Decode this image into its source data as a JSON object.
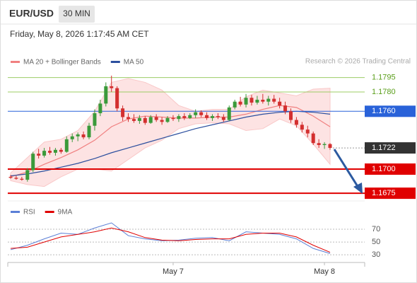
{
  "header": {
    "symbol": "EUR/USD",
    "timeframe": "30 MIN",
    "timestamp": "Friday, May 8, 2026 1:17:45 AM CET"
  },
  "chart_data": {
    "type": "candlestick",
    "legend": [
      {
        "name": "MA 20 + Bollinger Bands",
        "color": "#f08080"
      },
      {
        "name": "MA 50",
        "color": "#2c4f9e"
      }
    ],
    "credit": "Research © 2026 Trading Central",
    "ylim": [
      1.1667,
      1.1805
    ],
    "xlim": [
      -1,
      60
    ],
    "up_color": "#3a9a3a",
    "down_color": "#d32f2f",
    "open": [
      1.1692,
      1.1691,
      1.169,
      1.1689,
      1.1699,
      1.1716,
      1.1714,
      1.1719,
      1.1717,
      1.172,
      1.1718,
      1.1731,
      1.1734,
      1.1736,
      1.1733,
      1.1745,
      1.1758,
      1.1768,
      1.1786,
      1.1784,
      1.1763,
      1.1754,
      1.1752,
      1.175,
      1.1753,
      1.1748,
      1.1754,
      1.1751,
      1.1749,
      1.1753,
      1.1752,
      1.1755,
      1.1753,
      1.1756,
      1.1759,
      1.1756,
      1.1753,
      1.1755,
      1.1754,
      1.1751,
      1.1764,
      1.177,
      1.1767,
      1.1774,
      1.1769,
      1.1772,
      1.177,
      1.1773,
      1.177,
      1.1766,
      1.176,
      1.1751,
      1.1746,
      1.1741,
      1.1737,
      1.1727,
      1.1725,
      1.1726
    ],
    "high": [
      1.1694,
      1.1693,
      1.1692,
      1.1701,
      1.1718,
      1.1721,
      1.1722,
      1.1723,
      1.1722,
      1.1722,
      1.1734,
      1.1737,
      1.1738,
      1.1739,
      1.1748,
      1.1762,
      1.1772,
      1.179,
      1.1797,
      1.1786,
      1.1766,
      1.1758,
      1.1757,
      1.1756,
      1.1755,
      1.1756,
      1.1757,
      1.1754,
      1.1755,
      1.1756,
      1.1757,
      1.1758,
      1.1758,
      1.1762,
      1.1761,
      1.1759,
      1.1757,
      1.1758,
      1.1757,
      1.1766,
      1.1772,
      1.1775,
      1.1778,
      1.1777,
      1.1776,
      1.1778,
      1.1776,
      1.1777,
      1.1774,
      1.177,
      1.1763,
      1.1754,
      1.1749,
      1.1745,
      1.1739,
      1.1731,
      1.1728,
      1.1727
    ],
    "low": [
      1.169,
      1.1689,
      1.1688,
      1.1687,
      1.1697,
      1.1711,
      1.1712,
      1.1715,
      1.1714,
      1.1716,
      1.1717,
      1.1728,
      1.1729,
      1.1731,
      1.1731,
      1.174,
      1.1755,
      1.1765,
      1.178,
      1.176,
      1.175,
      1.1749,
      1.1748,
      1.1747,
      1.1746,
      1.1747,
      1.1749,
      1.1746,
      1.1748,
      1.175,
      1.1749,
      1.1751,
      1.1752,
      1.1753,
      1.1754,
      1.1751,
      1.175,
      1.1752,
      1.1749,
      1.175,
      1.1762,
      1.1765,
      1.1764,
      1.1766,
      1.1767,
      1.1768,
      1.1766,
      1.1768,
      1.1763,
      1.1757,
      1.1748,
      1.1743,
      1.1738,
      1.1733,
      1.1725,
      1.1722,
      1.1721,
      1.172
    ],
    "close": [
      1.1691,
      1.169,
      1.1689,
      1.1699,
      1.1716,
      1.1714,
      1.1719,
      1.1717,
      1.172,
      1.1718,
      1.1731,
      1.1734,
      1.1736,
      1.1733,
      1.1745,
      1.1758,
      1.1768,
      1.1786,
      1.1784,
      1.1763,
      1.1754,
      1.1752,
      1.175,
      1.1753,
      1.1748,
      1.1754,
      1.1751,
      1.1749,
      1.1753,
      1.1752,
      1.1755,
      1.1753,
      1.1756,
      1.1759,
      1.1756,
      1.1753,
      1.1755,
      1.1754,
      1.1751,
      1.1764,
      1.177,
      1.1767,
      1.1774,
      1.1769,
      1.1772,
      1.177,
      1.1773,
      1.177,
      1.1766,
      1.176,
      1.1751,
      1.1746,
      1.1741,
      1.1737,
      1.1727,
      1.1725,
      1.1726,
      1.1722
    ],
    "overlay_x": [
      0,
      3,
      6,
      9,
      12,
      15,
      18,
      21,
      24,
      27,
      30,
      33,
      36,
      39,
      42,
      45,
      48,
      51,
      54,
      57
    ],
    "ma20": [
      1.1692,
      1.1697,
      1.1705,
      1.1712,
      1.172,
      1.173,
      1.1744,
      1.1752,
      1.1755,
      1.1754,
      1.1753,
      1.1753,
      1.1754,
      1.1754,
      1.1757,
      1.1762,
      1.1766,
      1.1764,
      1.1755,
      1.1744
    ],
    "ma50": [
      1.1693,
      1.1695,
      1.1698,
      1.1702,
      1.1706,
      1.1711,
      1.1717,
      1.1722,
      1.1727,
      1.1732,
      1.1737,
      1.1742,
      1.1746,
      1.175,
      1.1754,
      1.1757,
      1.1759,
      1.176,
      1.1759,
      1.1757
    ],
    "bb_upper": [
      1.1696,
      1.1712,
      1.1728,
      1.1731,
      1.174,
      1.176,
      1.179,
      1.1794,
      1.179,
      1.1782,
      1.1766,
      1.176,
      1.1762,
      1.1762,
      1.1775,
      1.1782,
      1.1779,
      1.1776,
      1.1783,
      1.1784
    ],
    "bb_lower": [
      1.1688,
      1.1684,
      1.1682,
      1.1692,
      1.17,
      1.17,
      1.1698,
      1.171,
      1.1722,
      1.173,
      1.1742,
      1.1747,
      1.1748,
      1.1747,
      1.174,
      1.1742,
      1.1752,
      1.1745,
      1.1726,
      1.1705
    ],
    "levels": [
      {
        "value": 1.1795,
        "label": "1.1795",
        "color": "#9ccc65",
        "style": "text"
      },
      {
        "value": 1.178,
        "label": "1.1780",
        "color": "#9ccc65",
        "style": "text"
      },
      {
        "value": 1.176,
        "label": "1.1760",
        "color": "#2962d9",
        "style": "box"
      },
      {
        "value": 1.1722,
        "label": "1.1722",
        "color": "#333333",
        "style": "current"
      },
      {
        "value": 1.17,
        "label": "1.1700",
        "color": "#e00000",
        "style": "box"
      },
      {
        "value": 1.1675,
        "label": "1.1675",
        "color": "#e00000",
        "style": "box"
      }
    ],
    "xticks": [
      {
        "value": 29,
        "label": "May 7"
      },
      {
        "value": 56,
        "label": "May 8"
      }
    ],
    "rsi": {
      "legend": [
        {
          "name": "RSI",
          "color": "#5b7fd6"
        },
        {
          "name": "9MA",
          "color": "#e00000"
        }
      ],
      "ylim": [
        18,
        90
      ],
      "yticks": [
        70,
        50,
        30
      ],
      "rsi": [
        38,
        45,
        55,
        64,
        62,
        72,
        80,
        60,
        55,
        52,
        53,
        56,
        57,
        52,
        66,
        64,
        62,
        55,
        40,
        32
      ],
      "ma9": [
        40,
        42,
        50,
        58,
        62,
        66,
        72,
        66,
        57,
        53,
        52,
        54,
        55,
        55,
        62,
        64,
        64,
        58,
        45,
        34
      ]
    }
  }
}
